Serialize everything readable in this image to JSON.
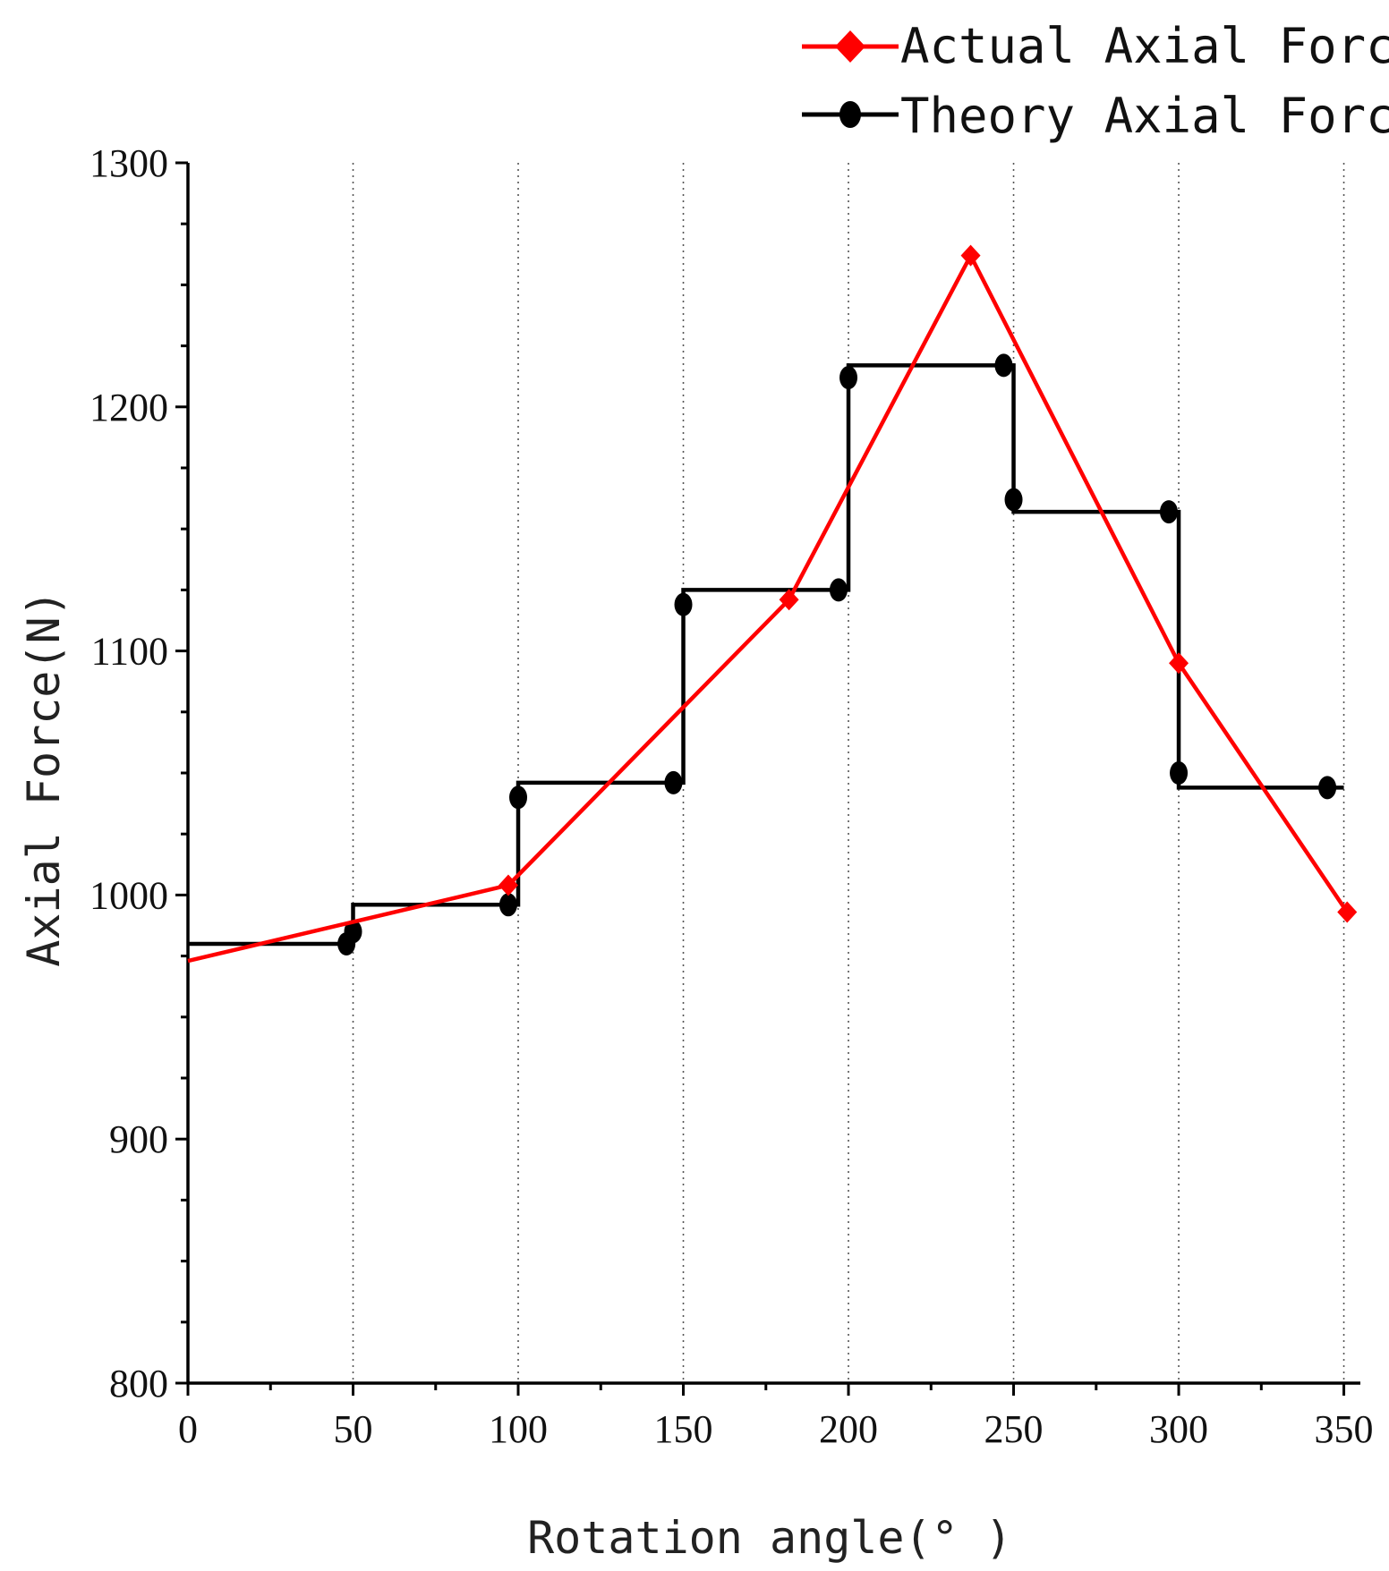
{
  "chart_data": {
    "type": "line",
    "xlabel": "Rotation angle(° )",
    "ylabel": "Axial Force(N)",
    "xlim": [
      0,
      355
    ],
    "ylim": [
      800,
      1300
    ],
    "x_ticks": [
      0,
      50,
      100,
      150,
      200,
      250,
      300,
      350
    ],
    "y_ticks": [
      800,
      900,
      1000,
      1100,
      1200,
      1300
    ],
    "x_tick_labels": [
      "0",
      "50",
      "100",
      "150",
      "200",
      "250",
      "300",
      "350"
    ],
    "y_tick_labels": [
      "800",
      "900",
      "1000",
      "1100",
      "1200",
      "1300"
    ],
    "x_minor_step": 25,
    "y_minor_step": 25,
    "grid": "vertical dotted at major x ticks",
    "legend_position": "top-right",
    "series": [
      {
        "name": "Actual Axial Force",
        "color": "#ff0000",
        "marker": "diamond",
        "style": "line",
        "x": [
          0,
          97,
          182,
          237,
          300,
          351
        ],
        "y": [
          973,
          1004,
          1121,
          1262,
          1095,
          993
        ]
      },
      {
        "name": "Theory Axial Force",
        "color": "#000000",
        "marker": "circle",
        "style": "step",
        "steps": [
          {
            "x_start": 0,
            "x_end": 50,
            "y": 980
          },
          {
            "x_start": 50,
            "x_end": 100,
            "y": 996
          },
          {
            "x_start": 100,
            "x_end": 150,
            "y": 1046
          },
          {
            "x_start": 150,
            "x_end": 200,
            "y": 1125
          },
          {
            "x_start": 200,
            "x_end": 250,
            "y": 1217
          },
          {
            "x_start": 250,
            "x_end": 300,
            "y": 1157
          },
          {
            "x_start": 300,
            "x_end": 350,
            "y": 1044
          }
        ],
        "markers": [
          {
            "x": 48,
            "y": 980
          },
          {
            "x": 50,
            "y": 985
          },
          {
            "x": 97,
            "y": 996
          },
          {
            "x": 100,
            "y": 1040
          },
          {
            "x": 147,
            "y": 1046
          },
          {
            "x": 150,
            "y": 1119
          },
          {
            "x": 197,
            "y": 1125
          },
          {
            "x": 200,
            "y": 1212
          },
          {
            "x": 247,
            "y": 1217
          },
          {
            "x": 250,
            "y": 1162
          },
          {
            "x": 297,
            "y": 1157
          },
          {
            "x": 300,
            "y": 1050
          },
          {
            "x": 345,
            "y": 1044
          }
        ]
      }
    ]
  }
}
